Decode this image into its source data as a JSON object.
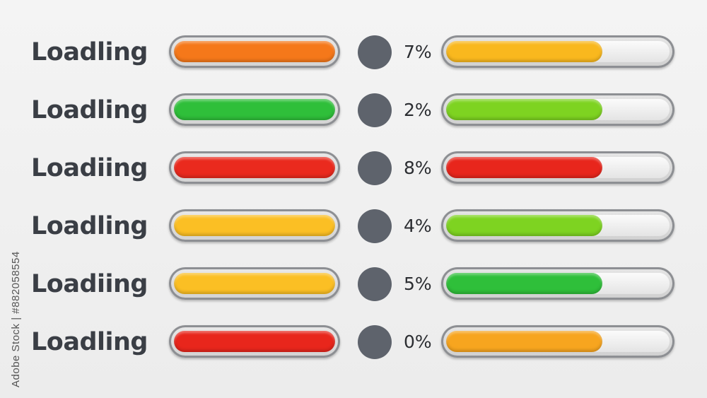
{
  "watermark": "Adobe Stock | #882058554",
  "rows": [
    {
      "label": "Loadling",
      "left_color": "#f5781a",
      "dot_color": "#5e636c",
      "percent": "7%",
      "right_fill": 0.7,
      "right_color": "#f9b81e"
    },
    {
      "label": "Loadling",
      "left_color": "#2fbf3a",
      "dot_color": "#5e636c",
      "percent": "2%",
      "right_fill": 0.7,
      "right_color": "#7ed321"
    },
    {
      "label": "Loadiing",
      "left_color": "#ea2a1e",
      "dot_color": "#5e636c",
      "percent": "8%",
      "right_fill": 0.7,
      "right_color": "#e8261c"
    },
    {
      "label": "Loadling",
      "left_color": "#fbbf24",
      "dot_color": "#5e636c",
      "percent": "4%",
      "right_fill": 0.7,
      "right_color": "#7ed321"
    },
    {
      "label": "Loadiing",
      "left_color": "#fbbf24",
      "dot_color": "#5e636c",
      "percent": "5%",
      "right_fill": 0.7,
      "right_color": "#2fbf3a"
    },
    {
      "label": "Loadling",
      "left_color": "#e8261c",
      "dot_color": "#5e636c",
      "percent": "0%",
      "right_fill": 0.7,
      "right_color": "#f7a51f"
    }
  ]
}
